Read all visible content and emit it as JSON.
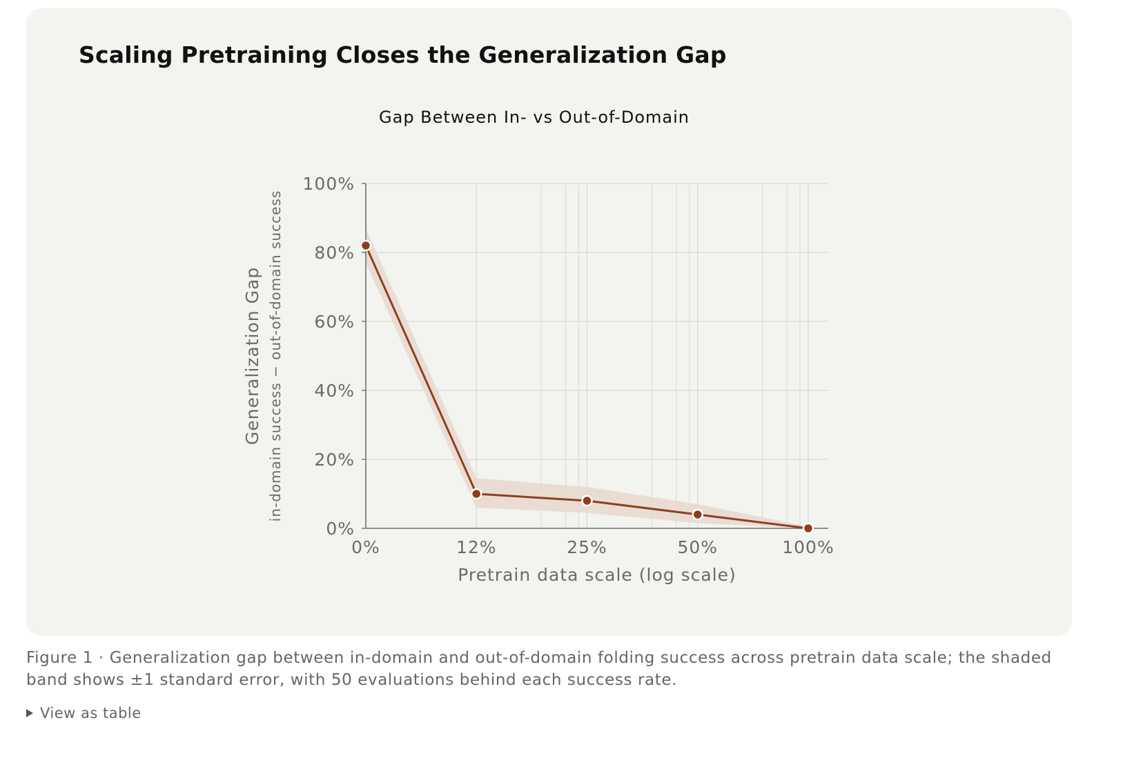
{
  "card": {
    "title": "Scaling Pretraining Closes the Generalization Gap"
  },
  "chart_data": {
    "type": "line",
    "title": "Gap Between In- vs Out-of-Domain",
    "xlabel": "Pretrain data scale (log scale)",
    "ylabel": "Generalization Gap",
    "ylabel_sub": "in-domain success − out-of-domain success",
    "categories": [
      "0%",
      "12%",
      "25%",
      "50%",
      "100%"
    ],
    "x_scale": "log",
    "y_ticks": [
      "0%",
      "20%",
      "40%",
      "60%",
      "80%",
      "100%"
    ],
    "ylim": [
      0,
      100
    ],
    "series": [
      {
        "values": [
          82,
          10,
          8,
          4,
          0
        ],
        "band_upper": [
          87,
          14.5,
          12,
          7,
          0.5
        ],
        "band_lower": [
          77,
          6,
          4.5,
          1.5,
          0
        ]
      }
    ],
    "grid": true,
    "colors": {
      "line": "#8e3f1f",
      "marker": "#8e3f1f",
      "marker_edge": "#ffffff",
      "band": "#e8d9cf",
      "grid": "#d9d9d4",
      "axis": "#6f6f6f",
      "text": "#6a6a6a"
    }
  },
  "caption": {
    "text": "Figure 1 · Generalization gap between in-domain and out-of-domain folding success across pretrain data scale; the shaded band shows ±1 standard error, with 50 evaluations behind each success rate."
  },
  "table_toggle": {
    "label": "View as table",
    "icon": "triangle-right-icon"
  }
}
